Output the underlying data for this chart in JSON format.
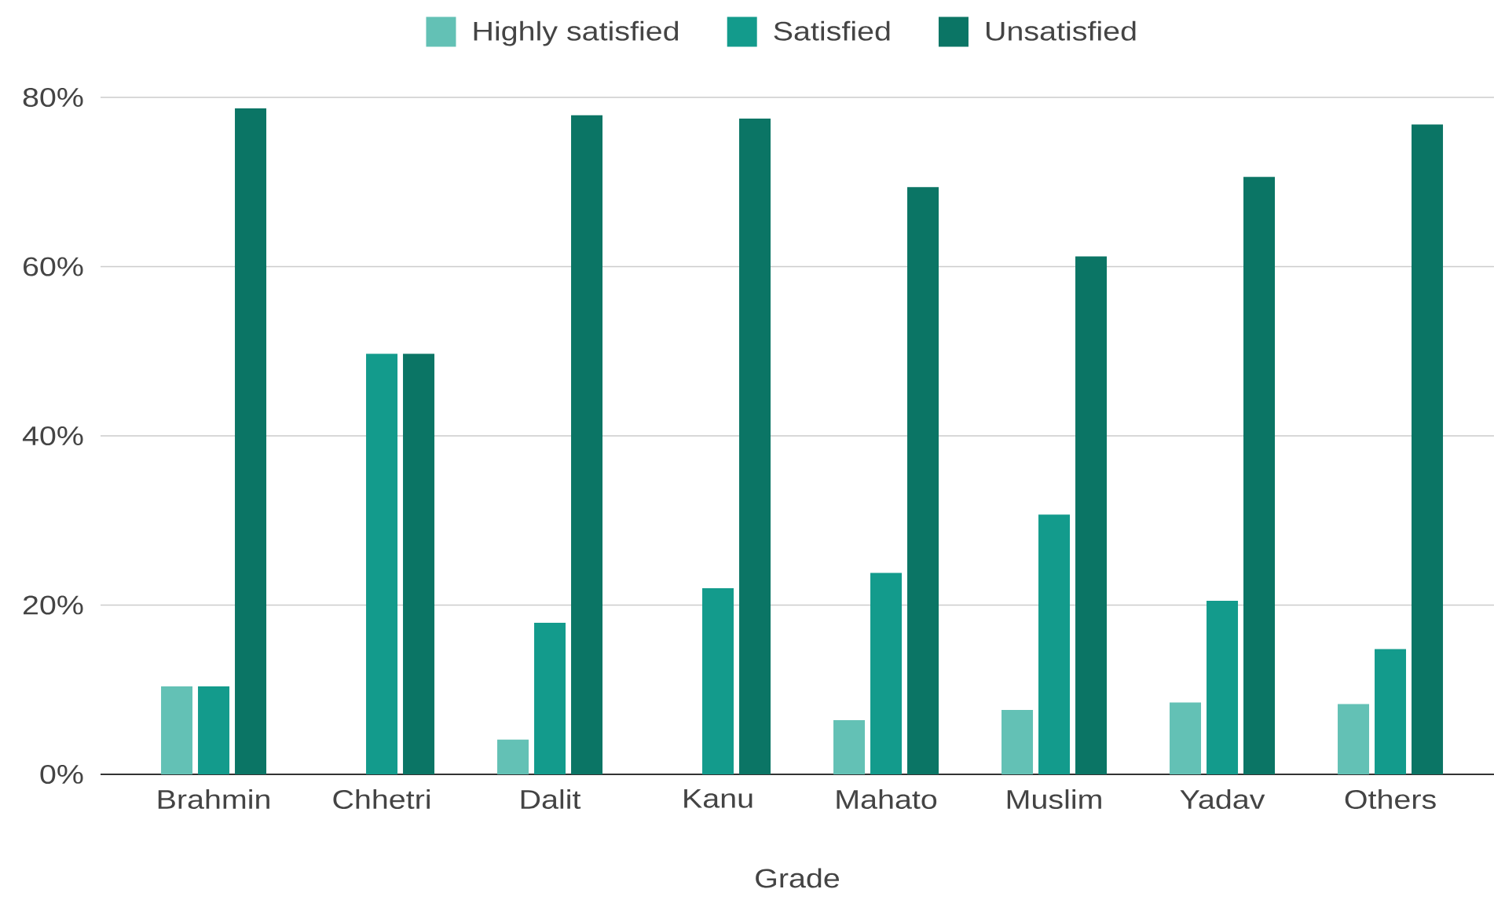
{
  "chart_data": {
    "type": "bar",
    "xlabel": "Grade",
    "categories": [
      "Brahmin",
      "Chhetri",
      "Dalit",
      "Kanu",
      "Mahato",
      "Muslim",
      "Yadav",
      "Others"
    ],
    "series": [
      {
        "name": "Highly satisfied",
        "color": "#63c1b5",
        "values": [
          10.4,
          0,
          4.1,
          0,
          6.4,
          7.6,
          8.5,
          8.3
        ]
      },
      {
        "name": "Satisfied",
        "color": "#139b8c",
        "values": [
          10.4,
          49.7,
          17.9,
          22.0,
          23.8,
          30.7,
          20.5,
          14.8
        ]
      },
      {
        "name": "Unsatisfied",
        "color": "#0b7565",
        "values": [
          78.7,
          49.7,
          77.9,
          77.5,
          69.4,
          61.2,
          70.6,
          76.8
        ]
      }
    ],
    "ylim": [
      0,
      80
    ],
    "yticks": [
      {
        "value": 0,
        "label": "0%"
      },
      {
        "value": 20,
        "label": "20%"
      },
      {
        "value": 40,
        "label": "40%"
      },
      {
        "value": 60,
        "label": "60%"
      },
      {
        "value": 80,
        "label": "80%"
      }
    ],
    "grid": "y",
    "legend": "top"
  }
}
